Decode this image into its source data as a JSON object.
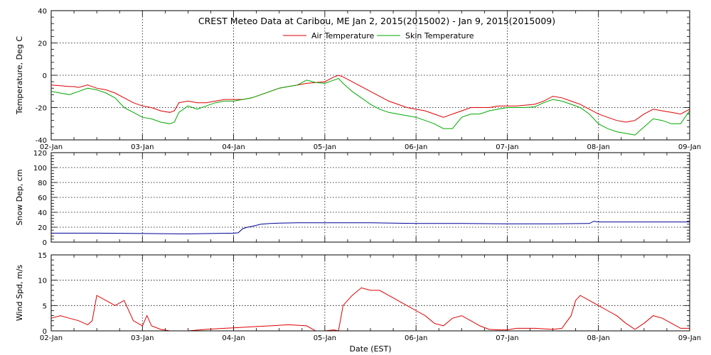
{
  "title": "CREST Meteo Data at Caribou, ME   Jan  2, 2015(2015002) - Jan  9, 2015(2015009)",
  "colors": {
    "air": "#dd0000",
    "skin": "#00aa00",
    "snow": "#000099",
    "wind": "#dd0000",
    "grid": "#000000"
  },
  "chart_data": [
    {
      "type": "line",
      "ylabel": "Temperature, Deg C",
      "xlabel": "",
      "ylim": [
        -40,
        40
      ],
      "y_ticks": [
        "-40",
        "-20",
        "0",
        "20",
        "40"
      ],
      "x_ticks": [
        "02-Jan",
        "03-Jan",
        "04-Jan",
        "05-Jan",
        "06-Jan",
        "07-Jan",
        "08-Jan",
        "09-Jan"
      ],
      "grid": true,
      "legend": "top-center",
      "series": [
        {
          "name": "Air Temperature",
          "x": [
            2.0,
            2.1,
            2.2,
            2.25,
            2.3,
            2.4,
            2.5,
            2.6,
            2.7,
            2.8,
            2.9,
            3.0,
            3.1,
            3.2,
            3.3,
            3.35,
            3.4,
            3.5,
            3.6,
            3.7,
            3.8,
            3.9,
            4.0,
            4.1,
            4.2,
            4.3,
            4.4,
            4.5,
            4.6,
            4.7,
            4.8,
            4.9,
            5.0,
            5.1,
            5.15,
            5.2,
            5.3,
            5.4,
            5.5,
            5.6,
            5.7,
            5.8,
            5.9,
            6.0,
            6.1,
            6.2,
            6.3,
            6.4,
            6.5,
            6.6,
            6.7,
            6.8,
            6.9,
            7.0,
            7.1,
            7.2,
            7.3,
            7.4,
            7.5,
            7.6,
            7.7,
            7.8,
            7.9,
            8.0,
            8.1,
            8.2,
            8.3,
            8.4,
            8.5,
            8.6,
            8.7,
            8.8,
            8.9,
            9.0
          ],
          "values": [
            -6,
            -6.5,
            -7,
            -7,
            -7.5,
            -6,
            -8,
            -9,
            -11,
            -14,
            -17,
            -19,
            -20,
            -22,
            -23,
            -22,
            -17,
            -16,
            -17,
            -17,
            -16,
            -15,
            -15,
            -15,
            -14,
            -12,
            -10,
            -8,
            -7,
            -6,
            -5,
            -4.5,
            -4,
            -1,
            0,
            -1,
            -4,
            -7,
            -10,
            -13,
            -16,
            -18,
            -20,
            -21,
            -22,
            -24,
            -26,
            -24,
            -22,
            -20,
            -20,
            -20,
            -19,
            -19,
            -19,
            -18.5,
            -18,
            -16,
            -13,
            -14,
            -16,
            -18,
            -21,
            -24,
            -26,
            -28,
            -29,
            -28,
            -24,
            -21,
            -22,
            -23,
            -24,
            -21
          ]
        },
        {
          "name": "Skin Temperature",
          "x": [
            2.0,
            2.1,
            2.2,
            2.25,
            2.3,
            2.4,
            2.5,
            2.6,
            2.7,
            2.8,
            2.9,
            3.0,
            3.1,
            3.2,
            3.3,
            3.35,
            3.4,
            3.5,
            3.6,
            3.7,
            3.8,
            3.9,
            4.0,
            4.1,
            4.2,
            4.3,
            4.4,
            4.5,
            4.6,
            4.7,
            4.8,
            4.9,
            5.0,
            5.1,
            5.15,
            5.2,
            5.3,
            5.4,
            5.5,
            5.6,
            5.7,
            5.8,
            5.9,
            6.0,
            6.1,
            6.2,
            6.3,
            6.4,
            6.5,
            6.6,
            6.7,
            6.8,
            6.9,
            7.0,
            7.1,
            7.2,
            7.3,
            7.4,
            7.5,
            7.6,
            7.7,
            7.8,
            7.9,
            8.0,
            8.1,
            8.2,
            8.3,
            8.4,
            8.5,
            8.6,
            8.7,
            8.8,
            8.9,
            9.0
          ],
          "values": [
            -10,
            -11,
            -12,
            -11,
            -10,
            -8,
            -9,
            -11,
            -14,
            -20,
            -23,
            -26,
            -27,
            -29,
            -30,
            -29,
            -23,
            -19,
            -21,
            -19,
            -17,
            -16,
            -16,
            -15,
            -14,
            -12,
            -10,
            -8,
            -7,
            -6,
            -3,
            -4.5,
            -5,
            -3,
            -2,
            -5,
            -10,
            -14,
            -18,
            -21,
            -23,
            -24,
            -25,
            -26,
            -28,
            -30,
            -33,
            -33,
            -26,
            -24,
            -24,
            -22,
            -21,
            -20,
            -20,
            -20,
            -19.5,
            -17,
            -15,
            -16,
            -18,
            -20,
            -24,
            -30,
            -33,
            -35,
            -36,
            -37,
            -32,
            -27,
            -28,
            -30,
            -30,
            -22
          ]
        }
      ]
    },
    {
      "type": "line",
      "ylabel": "Snow Dep, cm",
      "xlabel": "",
      "ylim": [
        0,
        120
      ],
      "y_ticks": [
        "0",
        "20",
        "40",
        "60",
        "80",
        "100",
        "120"
      ],
      "x_ticks": [],
      "grid": true,
      "series": [
        {
          "name": "",
          "x": [
            2.0,
            2.5,
            3.0,
            3.5,
            4.0,
            4.05,
            4.1,
            4.15,
            4.2,
            4.3,
            4.4,
            4.5,
            4.7,
            5.0,
            5.5,
            6.0,
            6.5,
            7.0,
            7.5,
            7.9,
            7.95,
            8.0,
            8.5,
            9.0
          ],
          "values": [
            12,
            12,
            11.5,
            11,
            12,
            12.5,
            18,
            20,
            21,
            24,
            25,
            25.5,
            26,
            26,
            26,
            25,
            25,
            24.5,
            24.5,
            25,
            28,
            27,
            27,
            27
          ]
        }
      ]
    },
    {
      "type": "line",
      "ylabel": "Wind Spd, m/s",
      "xlabel": "Date (EST)",
      "ylim": [
        0,
        15
      ],
      "y_ticks": [
        "0",
        "5",
        "10",
        "15"
      ],
      "x_ticks": [
        "02-Jan",
        "03-Jan",
        "04-Jan",
        "05-Jan",
        "06-Jan",
        "07-Jan",
        "08-Jan",
        "09-Jan"
      ],
      "grid": true,
      "series": [
        {
          "name": "",
          "x": [
            2.0,
            2.1,
            2.2,
            2.3,
            2.4,
            2.45,
            2.5,
            2.6,
            2.7,
            2.8,
            2.9,
            3.0,
            3.05,
            3.1,
            3.2,
            3.3,
            3.5,
            3.7,
            3.9,
            4.0,
            4.2,
            4.4,
            4.6,
            4.8,
            4.9,
            5.0,
            5.1,
            5.15,
            5.2,
            5.3,
            5.4,
            5.5,
            5.6,
            5.7,
            5.8,
            5.9,
            6.0,
            6.1,
            6.2,
            6.3,
            6.4,
            6.5,
            6.6,
            6.7,
            6.8,
            6.9,
            7.0,
            7.1,
            7.3,
            7.5,
            7.6,
            7.7,
            7.75,
            7.8,
            7.9,
            8.0,
            8.1,
            8.2,
            8.3,
            8.4,
            8.5,
            8.6,
            8.7,
            8.8,
            8.9,
            9.0
          ],
          "values": [
            2.5,
            3,
            2.5,
            2,
            1.2,
            2,
            7,
            6,
            5,
            6,
            2,
            1,
            3,
            1,
            0.3,
            0,
            0,
            0.3,
            0.5,
            0.6,
            0.8,
            1,
            1.2,
            1,
            0,
            0,
            0.2,
            0,
            5,
            7,
            8.5,
            8,
            8,
            7,
            6,
            5,
            4,
            3,
            1.5,
            1,
            2.5,
            3,
            2,
            1,
            0.3,
            0.2,
            0.2,
            0.5,
            0.5,
            0.3,
            0.5,
            3,
            6,
            7,
            6,
            5,
            4,
            3,
            1.5,
            0.3,
            1.5,
            3,
            2.5,
            1.5,
            0.5,
            0.5
          ]
        }
      ]
    }
  ]
}
